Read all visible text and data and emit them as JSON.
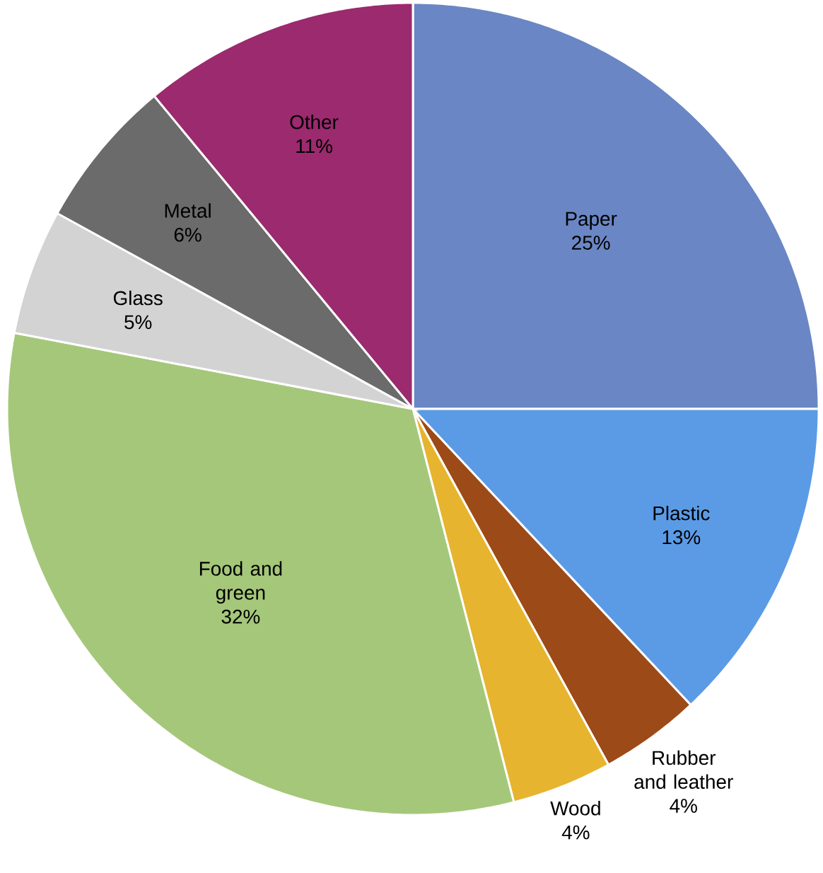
{
  "chart_data": {
    "type": "pie",
    "categories": [
      "Paper",
      "Plastic",
      "Rubber and leather",
      "Wood",
      "Food and green",
      "Glass",
      "Metal",
      "Other"
    ],
    "values": [
      25,
      13,
      4,
      4,
      32,
      5,
      6,
      11
    ],
    "value_labels": [
      "25%",
      "13%",
      "4%",
      "4%",
      "32%",
      "5%",
      "6%",
      "11%"
    ],
    "colors": [
      "#6a86c4",
      "#5b9be6",
      "#9c4a17",
      "#e6b42e",
      "#a5c77a",
      "#d3d3d3",
      "#6b6b6b",
      "#9b2a6e"
    ]
  }
}
